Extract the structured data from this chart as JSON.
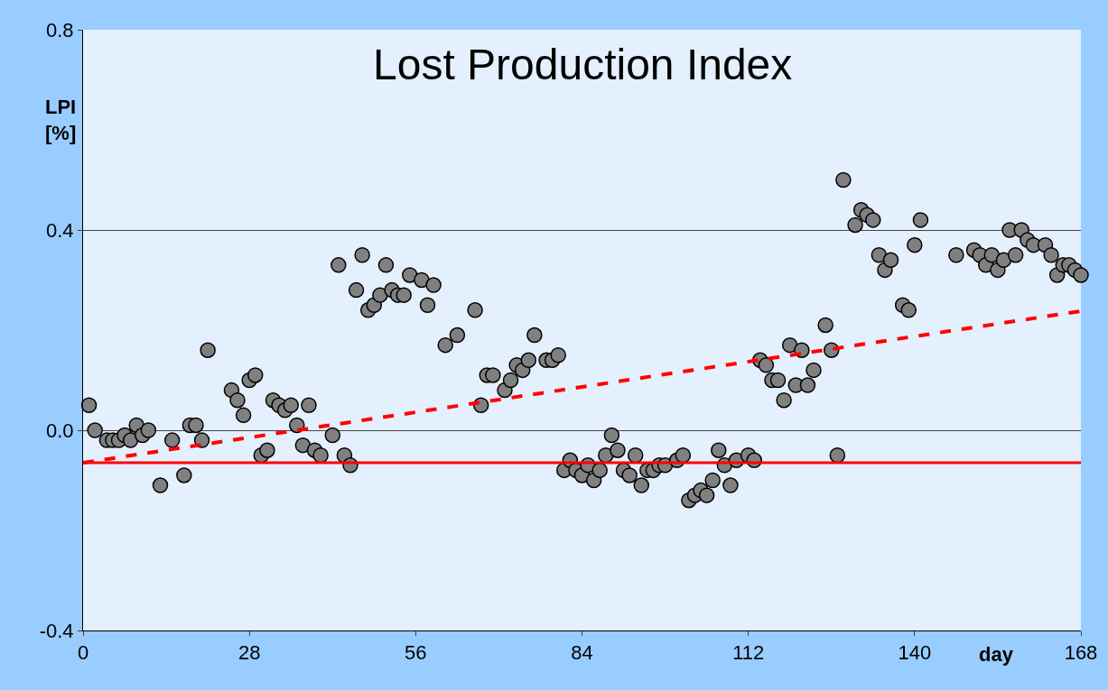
{
  "chart_data": {
    "type": "scatter",
    "title": "Lost Production Index",
    "xlabel": "day",
    "ylabel": "LPI [%]",
    "xlim": [
      0,
      168
    ],
    "xticks": [
      0,
      28,
      56,
      84,
      112,
      140,
      168
    ],
    "ylim": [
      -0.4,
      0.8
    ],
    "yticks": [
      -0.4,
      {
        "value": 0,
        "label": "0.0"
      },
      0.4,
      0.8
    ],
    "grid": "y",
    "marker": "circle",
    "series": [
      {
        "color": "#808080",
        "x": [
          1,
          2,
          4,
          5,
          6,
          7,
          8,
          9,
          10,
          11,
          13,
          15,
          17,
          18,
          19,
          20,
          21,
          25,
          26,
          27,
          28,
          29,
          30,
          31,
          32,
          33,
          34,
          35,
          36,
          37,
          38,
          39,
          40,
          42,
          43,
          44,
          45,
          46,
          47,
          48,
          49,
          50,
          51,
          52,
          53,
          54,
          55,
          57,
          58,
          59,
          61,
          63,
          66,
          67,
          68,
          69,
          71,
          72,
          73,
          74,
          75,
          76,
          78,
          79,
          80,
          81,
          82,
          83,
          84,
          85,
          86,
          87,
          88,
          89,
          90,
          91,
          92,
          93,
          94,
          95,
          96,
          97,
          98,
          100,
          101,
          102,
          103,
          104,
          105,
          106,
          107,
          108,
          109,
          110,
          112,
          113,
          114,
          115,
          116,
          117,
          118,
          119,
          120,
          121,
          122,
          123,
          125,
          126,
          127,
          128,
          130,
          131,
          132,
          133,
          134,
          135,
          136,
          138,
          139,
          140,
          141,
          147,
          150,
          151,
          152,
          153,
          154,
          155,
          156,
          157,
          158,
          159,
          160,
          162,
          163,
          164,
          165,
          166,
          167,
          168
        ],
        "values": [
          0.05,
          0.0,
          -0.02,
          -0.02,
          -0.02,
          -0.01,
          -0.02,
          0.01,
          -0.01,
          0.0,
          -0.11,
          -0.02,
          -0.09,
          0.01,
          0.01,
          -0.02,
          0.16,
          0.08,
          0.06,
          0.03,
          0.1,
          0.11,
          -0.05,
          -0.04,
          0.06,
          0.05,
          0.04,
          0.05,
          0.01,
          -0.03,
          0.05,
          -0.04,
          -0.05,
          -0.01,
          0.33,
          -0.05,
          -0.07,
          0.28,
          0.35,
          0.24,
          0.25,
          0.27,
          0.33,
          0.28,
          0.27,
          0.27,
          0.31,
          0.3,
          0.25,
          0.29,
          0.17,
          0.19,
          0.24,
          0.05,
          0.11,
          0.11,
          0.08,
          0.1,
          0.13,
          0.12,
          0.14,
          0.19,
          0.14,
          0.14,
          0.15,
          -0.08,
          -0.06,
          -0.08,
          -0.09,
          -0.07,
          -0.1,
          -0.08,
          -0.05,
          -0.01,
          -0.04,
          -0.08,
          -0.09,
          -0.05,
          -0.11,
          -0.08,
          -0.08,
          -0.07,
          -0.07,
          -0.06,
          -0.05,
          -0.14,
          -0.13,
          -0.12,
          -0.13,
          -0.1,
          -0.04,
          -0.07,
          -0.11,
          -0.06,
          -0.05,
          -0.06,
          0.14,
          0.13,
          0.1,
          0.1,
          0.06,
          0.17,
          0.09,
          0.16,
          0.09,
          0.12,
          0.21,
          0.16,
          -0.05,
          0.5,
          0.41,
          0.44,
          0.43,
          0.42,
          0.35,
          0.32,
          0.34,
          0.25,
          0.24,
          0.37,
          0.42,
          0.35,
          0.36,
          0.35,
          0.33,
          0.35,
          0.32,
          0.34,
          0.4,
          0.35,
          0.4,
          0.38,
          0.37,
          0.37,
          0.35,
          0.31,
          0.33,
          0.33,
          0.32,
          0.31
        ]
      },
      {
        "type": "line",
        "color": "#ff0000",
        "line_style": "dashed",
        "marker": "none",
        "x": [
          0,
          168
        ],
        "values": [
          -0.065,
          0.238
        ]
      }
    ],
    "ref_lines": [
      {
        "axis": "y",
        "value": -0.065,
        "color": "#ff0000",
        "line_style": "solid"
      }
    ]
  }
}
